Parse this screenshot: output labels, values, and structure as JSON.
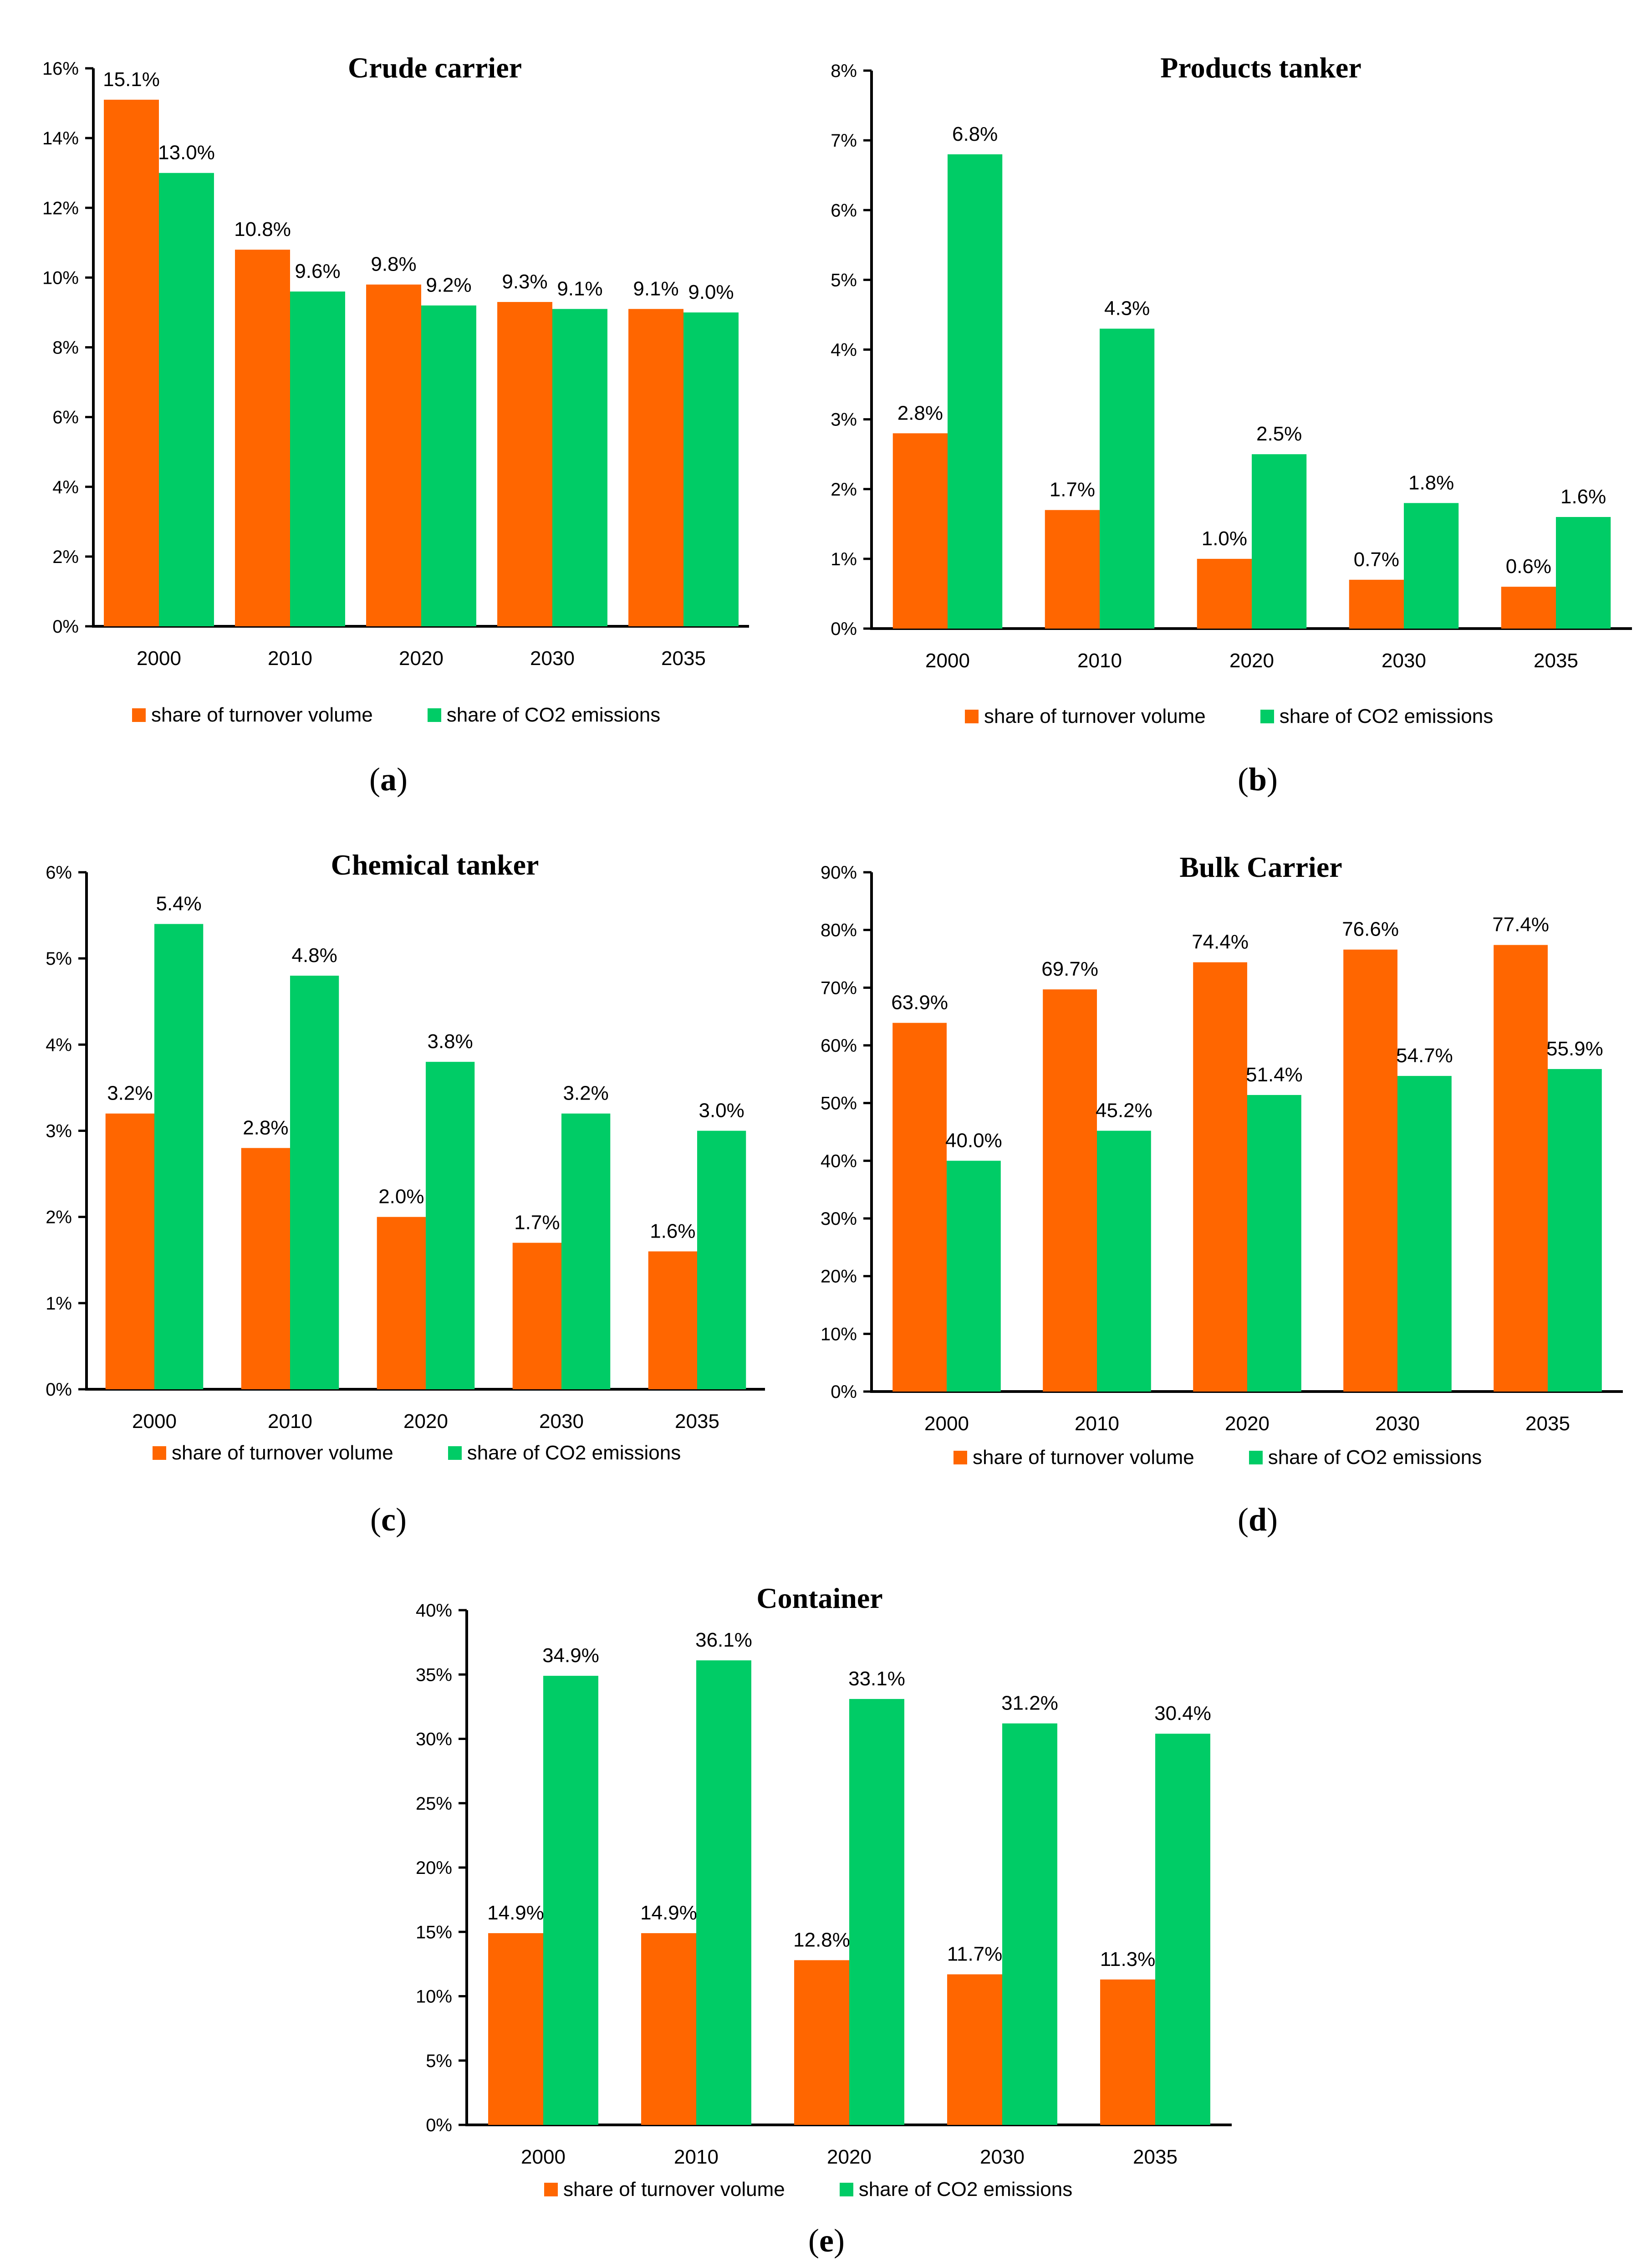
{
  "colors": {
    "turnover": "#ff6600",
    "co2": "#00cc66",
    "axis": "#000000"
  },
  "legend": {
    "turnover_label": "share of turnover volume",
    "co2_label": "share of CO2 emissions"
  },
  "chart_data": [
    {
      "id": "a",
      "type": "bar",
      "title": "Crude carrier",
      "caption_letter": "a",
      "categories": [
        "2000",
        "2010",
        "2020",
        "2030",
        "2035"
      ],
      "ylim": [
        0,
        16
      ],
      "yticks": [
        0,
        2,
        4,
        6,
        8,
        10,
        12,
        14,
        16
      ],
      "yunit": "%",
      "series": [
        {
          "name": "share of turnover volume",
          "values": [
            15.1,
            10.8,
            9.8,
            9.3,
            9.1
          ],
          "labels": [
            "15.1%",
            "10.8%",
            "9.8%",
            "9.3%",
            "9.1%"
          ]
        },
        {
          "name": "share of CO2 emissions",
          "values": [
            13.0,
            9.6,
            9.2,
            9.1,
            9.0
          ],
          "labels": [
            "13.0%",
            "9.6%",
            "9.2%",
            "9.1%",
            "9.0%"
          ]
        }
      ],
      "legend_position": "bottom",
      "grid": false
    },
    {
      "id": "b",
      "type": "bar",
      "title": "Products tanker",
      "caption_letter": "b",
      "categories": [
        "2000",
        "2010",
        "2020",
        "2030",
        "2035"
      ],
      "ylim": [
        0,
        8
      ],
      "yticks": [
        0,
        1,
        2,
        3,
        4,
        5,
        6,
        7,
        8
      ],
      "yunit": "%",
      "series": [
        {
          "name": "share of turnover volume",
          "values": [
            2.8,
            1.7,
            1.0,
            0.7,
            0.6
          ],
          "labels": [
            "2.8%",
            "1.7%",
            "1.0%",
            "0.7%",
            "0.6%"
          ]
        },
        {
          "name": "share of CO2 emissions",
          "values": [
            6.8,
            4.3,
            2.5,
            1.8,
            1.6
          ],
          "labels": [
            "6.8%",
            "4.3%",
            "2.5%",
            "1.8%",
            "1.6%"
          ]
        }
      ],
      "legend_position": "bottom",
      "grid": false
    },
    {
      "id": "c",
      "type": "bar",
      "title": "Chemical tanker",
      "caption_letter": "c",
      "categories": [
        "2000",
        "2010",
        "2020",
        "2030",
        "2035"
      ],
      "ylim": [
        0,
        6
      ],
      "yticks": [
        0,
        1,
        2,
        3,
        4,
        5,
        6
      ],
      "yunit": "%",
      "series": [
        {
          "name": "share of turnover volume",
          "values": [
            3.2,
            2.8,
            2.0,
            1.7,
            1.6
          ],
          "labels": [
            "3.2%",
            "2.8%",
            "2.0%",
            "1.7%",
            "1.6%"
          ]
        },
        {
          "name": "share of CO2 emissions",
          "values": [
            5.4,
            4.8,
            3.8,
            3.2,
            3.0
          ],
          "labels": [
            "5.4%",
            "4.8%",
            "3.8%",
            "3.2%",
            "3.0%"
          ]
        }
      ],
      "legend_position": "bottom",
      "grid": false
    },
    {
      "id": "d",
      "type": "bar",
      "title": "Bulk Carrier",
      "caption_letter": "d",
      "categories": [
        "2000",
        "2010",
        "2020",
        "2030",
        "2035"
      ],
      "ylim": [
        0,
        90
      ],
      "yticks": [
        0,
        10,
        20,
        30,
        40,
        50,
        60,
        70,
        80,
        90
      ],
      "yunit": "%",
      "series": [
        {
          "name": "share of turnover volume",
          "values": [
            63.9,
            69.7,
            74.4,
            76.6,
            77.4
          ],
          "labels": [
            "63.9%",
            "69.7%",
            "74.4%",
            "76.6%",
            "77.4%"
          ]
        },
        {
          "name": "share of CO2 emissions",
          "values": [
            40.0,
            45.2,
            51.4,
            54.7,
            55.9
          ],
          "labels": [
            "40.0%",
            "45.2%",
            "51.4%",
            "54.7%",
            "55.9%"
          ]
        }
      ],
      "legend_position": "bottom",
      "grid": false
    },
    {
      "id": "e",
      "type": "bar",
      "title": "Container",
      "caption_letter": "e",
      "categories": [
        "2000",
        "2010",
        "2020",
        "2030",
        "2035"
      ],
      "ylim": [
        0,
        40
      ],
      "yticks": [
        0,
        5,
        10,
        15,
        20,
        25,
        30,
        35,
        40
      ],
      "yunit": "%",
      "series": [
        {
          "name": "share of turnover volume",
          "values": [
            14.9,
            14.9,
            12.8,
            11.7,
            11.3
          ],
          "labels": [
            "14.9%",
            "14.9%",
            "12.8%",
            "11.7%",
            "11.3%"
          ]
        },
        {
          "name": "share of CO2 emissions",
          "values": [
            34.9,
            36.1,
            33.1,
            31.2,
            30.4
          ],
          "labels": [
            "34.9%",
            "36.1%",
            "33.1%",
            "31.2%",
            "30.4%"
          ]
        }
      ],
      "legend_position": "bottom",
      "grid": false
    }
  ]
}
